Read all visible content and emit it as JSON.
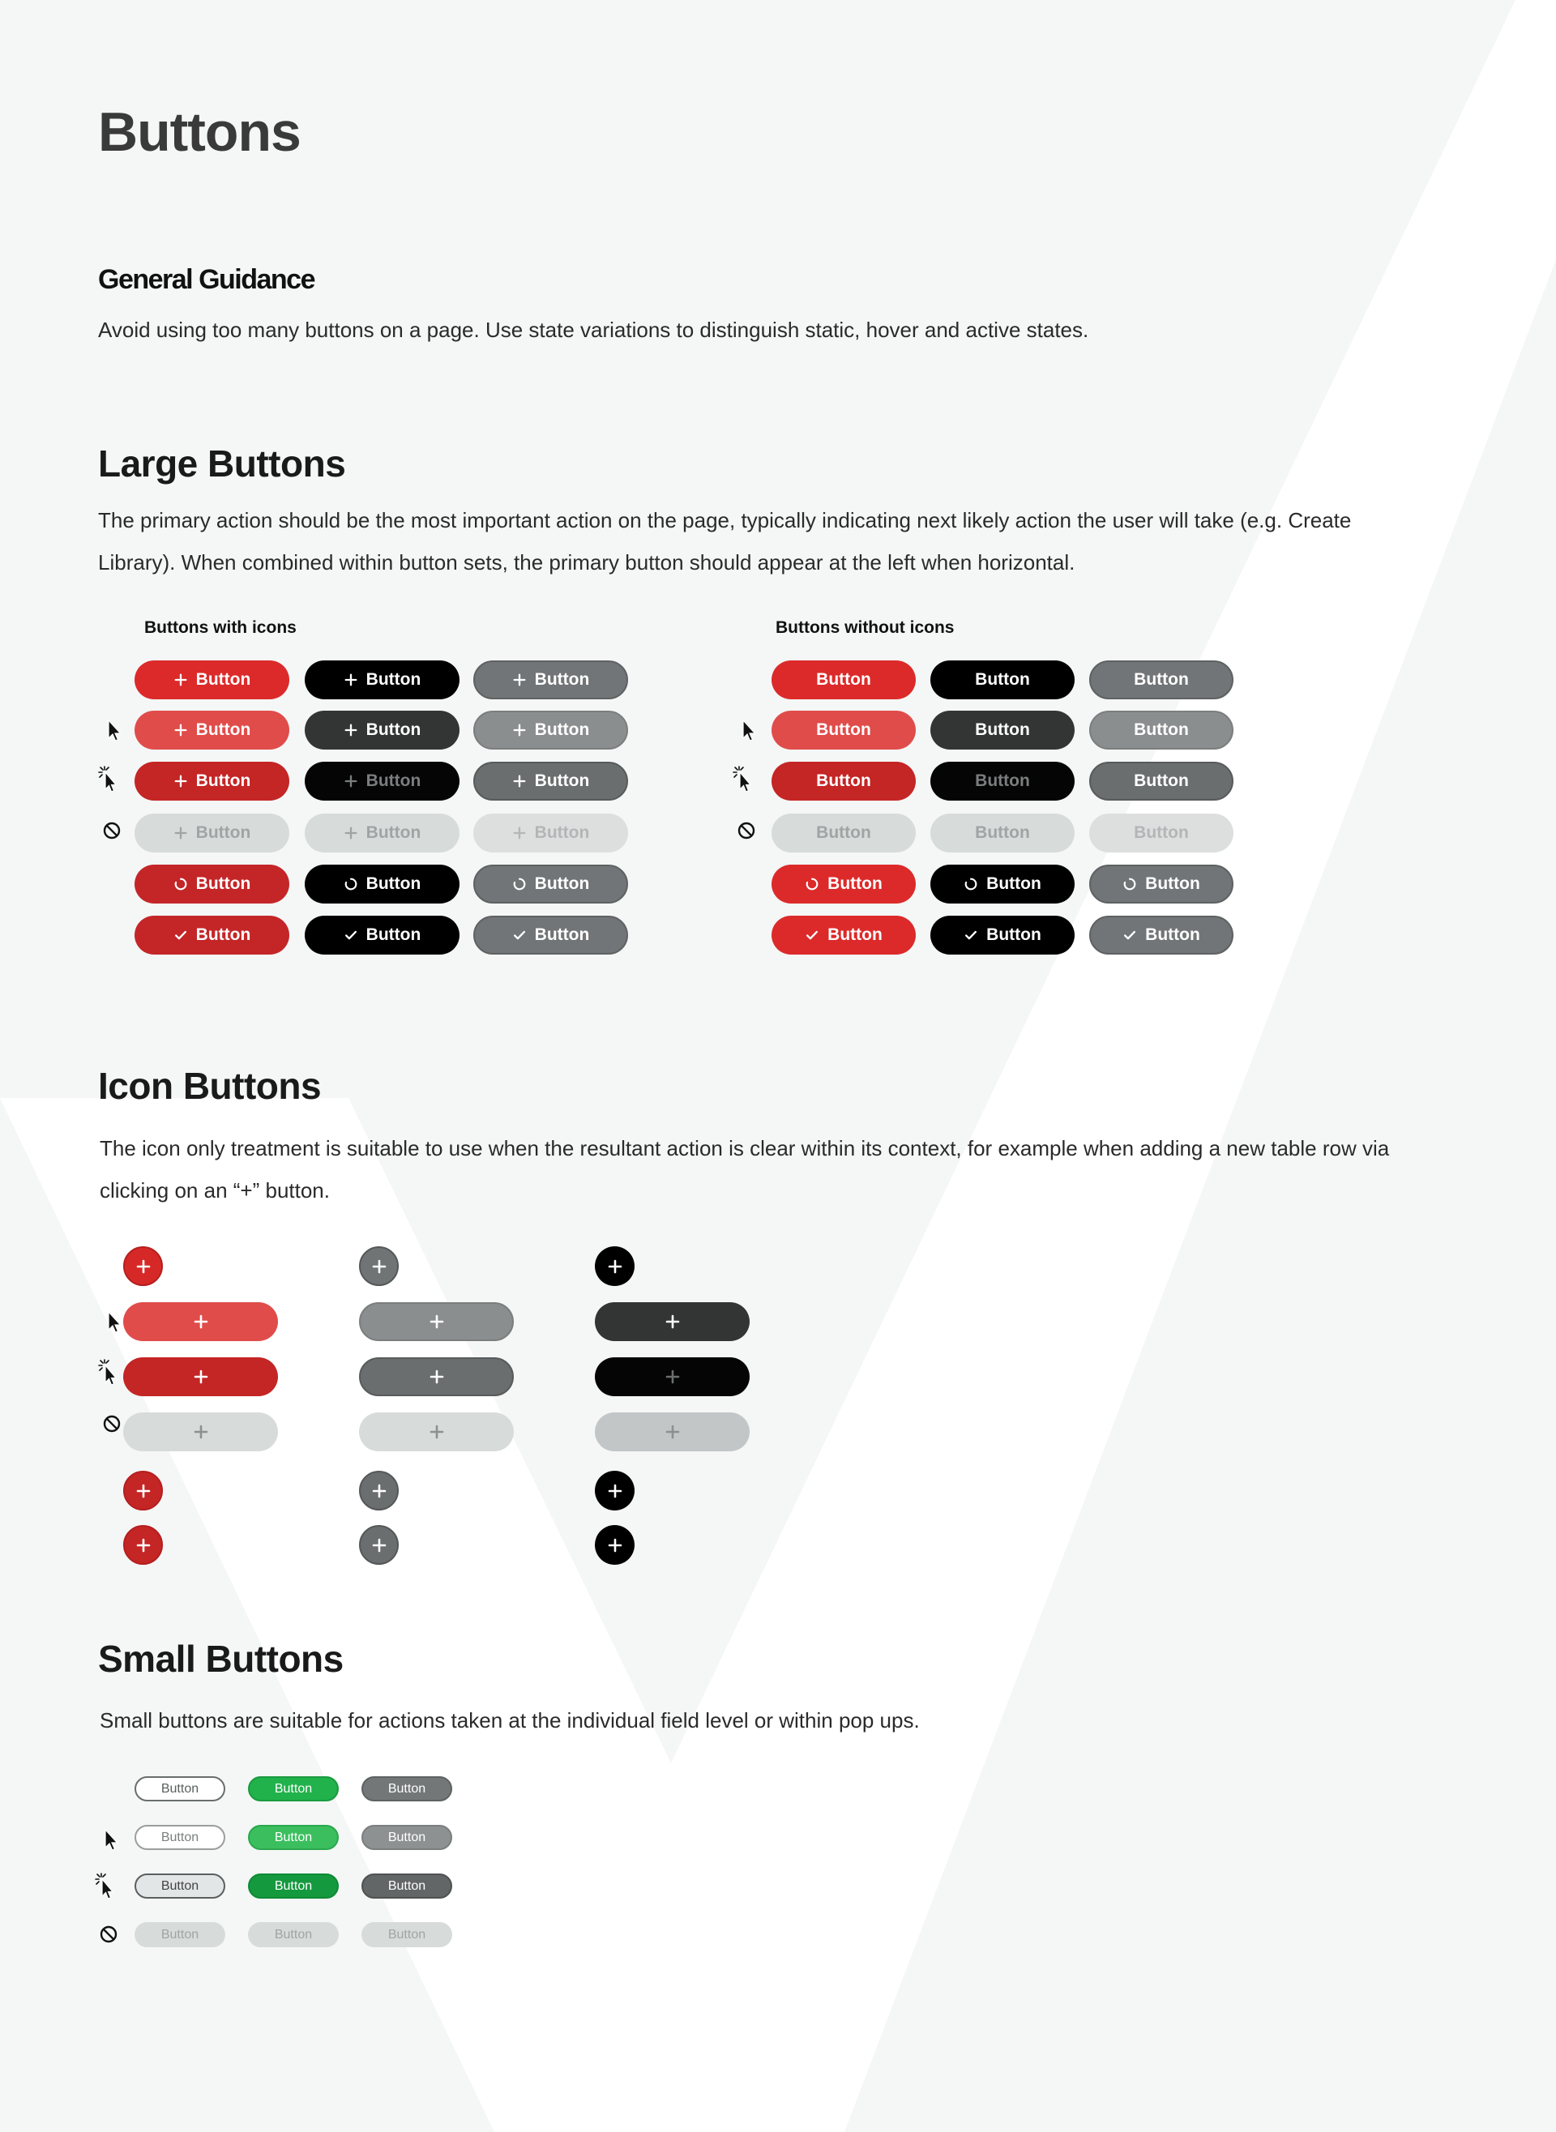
{
  "header": {
    "title": "Buttons"
  },
  "general": {
    "heading": "General Guidance",
    "text": "Avoid using too many buttons on a page. Use state variations to distinguish static, hover and active states."
  },
  "large": {
    "heading": "Large Buttons",
    "text_line1": "The primary action should be the most important action on the page, typically indicating next likely action the user will take (e.g. Create",
    "text_line2": "Library). When combined within button sets, the primary button should appear at the left when horizontal.",
    "with_icons_label": "Buttons with icons",
    "without_icons_label": "Buttons without icons",
    "button_label": "Button"
  },
  "icon_buttons": {
    "heading": "Icon Buttons",
    "text_line1": "The icon only treatment is suitable to use when the resultant action is clear within its context, for example when adding a new table row via",
    "text_line2": "clicking on an “+” button."
  },
  "small": {
    "heading": "Small Buttons",
    "text": "Small buttons are suitable for actions taken at the individual field level or within pop ups.",
    "button_label": "Button"
  },
  "state_rows": [
    "static",
    "hover",
    "active",
    "disabled",
    "loading",
    "success"
  ],
  "small_state_rows": [
    "static",
    "hover",
    "active",
    "disabled"
  ],
  "button_variants": [
    "primary-red",
    "secondary-black",
    "tertiary-gray"
  ],
  "small_variants": [
    "outline",
    "green",
    "gray"
  ],
  "colors": {
    "red": "#dc2a2a",
    "red_hover": "#e04c4a",
    "red_active": "#c42525",
    "red_loading": "#c42628",
    "black": "#000000",
    "black_hover": "#333535",
    "gray": "#717577",
    "gray_hover": "#8b8e8e",
    "gray_active": "#6b6e6e",
    "disabled": "#d7dbda",
    "disabled_text": "#a0a4a4",
    "green": "#21b24b",
    "green_active": "#15993f",
    "page_bg": "#f4f7f6",
    "watermark": "#ffffff"
  },
  "icons": [
    "plus-icon",
    "spinner-icon",
    "check-icon",
    "pointer-icon",
    "click-pointer-icon",
    "disabled-icon"
  ]
}
